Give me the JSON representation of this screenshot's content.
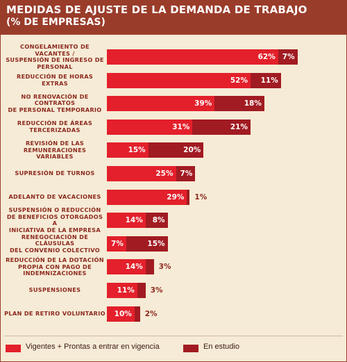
{
  "title": "MEDIDAS DE AJUSTE DE LA DEMANDA DE TRABAJO",
  "subtitle": "(% DE EMPRESAS)",
  "colors": {
    "header": "#9a3c2a",
    "vigentes": "#e3202b",
    "estudio": "#a11b22",
    "background": "#f6ebd6",
    "label": "#8c2a1e"
  },
  "chart_data": {
    "type": "bar",
    "orientation": "horizontal",
    "stacked": true,
    "categories": [
      [
        "CONGELAMIENTO DE VACANTES /",
        "SUSPENSIÓN DE INGRESO DE",
        "PERSONAL"
      ],
      [
        "REDUCCIÓN DE HORAS EXTRAS"
      ],
      [
        "NO RENOVACIÓN DE CONTRATOS",
        "DE PERSONAL TEMPORARIO"
      ],
      [
        "REDUCCIÓN DE ÁREAS",
        "TERCERIZADAS"
      ],
      [
        "REVISIÓN DE LAS",
        "REMUNERACIONES VARIABLES"
      ],
      [
        "SUPRESIÓN DE TURNOS"
      ],
      [
        "ADELANTO DE VACACIONES"
      ],
      [
        "SUSPENSIÓN O REDUCCIÓN",
        "DE BENEFICIOS OTORGADOS A",
        "INICIATIVA DE LA EMPRESA"
      ],
      [
        "RENEGOCIACIÓN DE CLÁUSULAS",
        "DEL CONVENIO COLECTIVO"
      ],
      [
        "REDUCCIÓN DE LA DOTACIÓN",
        "PROPIA CON PAGO DE",
        "INDEMNIZACIONES"
      ],
      [
        "SUSPENSIONES"
      ],
      [
        "PLAN DE RETIRO VOLUNTARIO"
      ]
    ],
    "series": [
      {
        "name": "Vigentes + Prontas a entrar en vigencia",
        "values": [
          62,
          52,
          39,
          31,
          15,
          25,
          29,
          14,
          7,
          14,
          11,
          10
        ],
        "labels": [
          "62%",
          "52%",
          "39%",
          "31%",
          "15%",
          "25%",
          "29%",
          "14%",
          "7%",
          "14%",
          "11%",
          "10%"
        ]
      },
      {
        "name": "En estudio",
        "values": [
          7,
          11,
          18,
          21,
          20,
          7,
          1,
          8,
          15,
          3,
          3,
          2
        ],
        "labels": [
          "7%",
          "11%",
          "18%",
          "21%",
          "20%",
          "7%",
          "1%",
          "8%",
          "15%",
          "3%",
          "3%",
          "2%"
        ]
      }
    ],
    "xlim": [
      0,
      100
    ],
    "legend": "bottom"
  }
}
